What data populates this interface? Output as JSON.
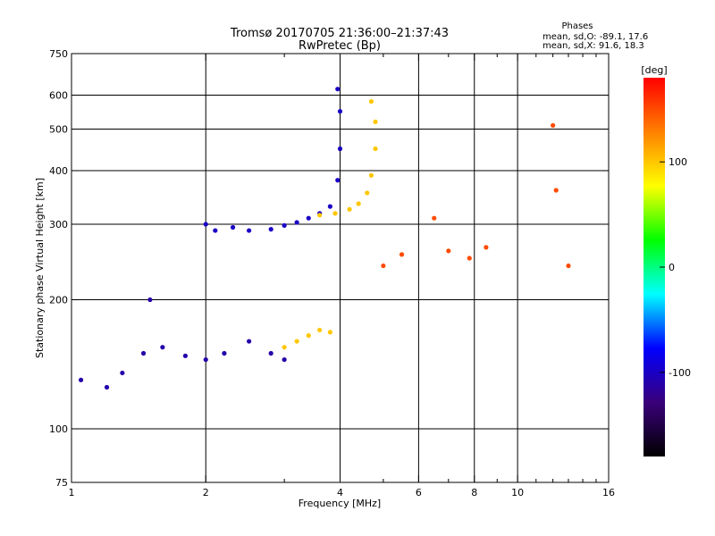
{
  "chart_data": {
    "type": "scatter",
    "title": "Tromsø 20170705 21:36:00–21:37:43",
    "subtitle": "RwPretec (Bp)",
    "xlabel": "Frequency [MHz]",
    "ylabel": "Stationary phase Virtual Height [km]",
    "x_scale": "log",
    "y_scale": "log",
    "xlim": [
      1,
      16
    ],
    "ylim": [
      75,
      750
    ],
    "x_ticks": [
      1,
      2,
      4,
      6,
      8,
      10,
      16
    ],
    "y_ticks": [
      75,
      100,
      200,
      300,
      400,
      500,
      600,
      750
    ],
    "grid": true,
    "info": {
      "heading": "Phases",
      "line1": "mean, sd,O: -89.1, 17.6",
      "line2": "mean, sd,X:  91.6, 18.3"
    },
    "colorbar": {
      "label": "[deg]",
      "range": [
        -180,
        180
      ],
      "ticks": [
        100,
        0,
        -100
      ],
      "colors": [
        "#000000",
        "#3a007a",
        "#0000ff",
        "#00ffff",
        "#00ff00",
        "#ffff00",
        "#ff8000",
        "#ff0000"
      ]
    },
    "series": [
      {
        "role": "O-mode F-trace",
        "phase_deg": -100,
        "points": [
          [
            2.0,
            300
          ],
          [
            2.1,
            290
          ],
          [
            2.3,
            295
          ],
          [
            2.5,
            290
          ],
          [
            2.8,
            292
          ],
          [
            3.0,
            298
          ],
          [
            3.2,
            303
          ],
          [
            3.4,
            310
          ],
          [
            3.6,
            318
          ],
          [
            3.8,
            330
          ],
          [
            3.95,
            380
          ],
          [
            4.0,
            450
          ],
          [
            4.0,
            550
          ],
          [
            3.95,
            620
          ]
        ]
      },
      {
        "role": "X-mode F-trace",
        "phase_deg": 100,
        "points": [
          [
            3.6,
            315
          ],
          [
            3.9,
            318
          ],
          [
            4.2,
            325
          ],
          [
            4.4,
            335
          ],
          [
            4.6,
            355
          ],
          [
            4.7,
            390
          ],
          [
            4.8,
            450
          ],
          [
            4.8,
            520
          ],
          [
            4.7,
            580
          ]
        ]
      },
      {
        "role": "lower E/F1 traces",
        "phase_deg": -110,
        "points": [
          [
            1.05,
            130
          ],
          [
            1.2,
            125
          ],
          [
            1.3,
            135
          ],
          [
            1.45,
            150
          ],
          [
            1.5,
            200
          ],
          [
            1.6,
            155
          ],
          [
            1.8,
            148
          ],
          [
            2.0,
            145
          ],
          [
            2.2,
            150
          ],
          [
            2.5,
            160
          ],
          [
            2.8,
            150
          ],
          [
            3.0,
            145
          ]
        ]
      },
      {
        "role": "X-mode E trace",
        "phase_deg": 100,
        "points": [
          [
            3.0,
            155
          ],
          [
            3.2,
            160
          ],
          [
            3.4,
            165
          ],
          [
            3.6,
            170
          ],
          [
            3.8,
            168
          ]
        ]
      },
      {
        "role": "scattered echoes",
        "phase_deg": 150,
        "points": [
          [
            5.0,
            240
          ],
          [
            5.5,
            255
          ],
          [
            6.5,
            310
          ],
          [
            7.0,
            260
          ],
          [
            7.8,
            250
          ],
          [
            8.5,
            265
          ],
          [
            12.0,
            510
          ],
          [
            12.2,
            360
          ],
          [
            13.0,
            240
          ]
        ]
      }
    ]
  }
}
